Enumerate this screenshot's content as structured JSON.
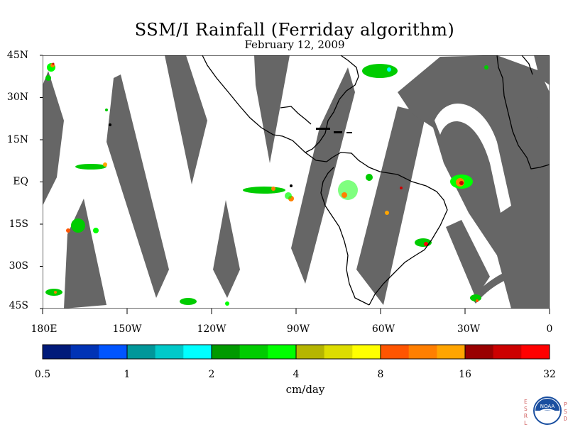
{
  "figure": {
    "title": "SSM/I Rainfall (Ferriday algorithm)",
    "date": "February 12, 2009"
  },
  "map": {
    "lat_labels": [
      "45N",
      "30N",
      "15N",
      "EQ",
      "15S",
      "30S",
      "45S"
    ],
    "lon_labels": [
      "180E",
      "150W",
      "120W",
      "90W",
      "60W",
      "30W",
      "0"
    ],
    "no_data_color": "#666666",
    "land_outline_color": "#000000",
    "background_color": "#ffffff"
  },
  "colorbar": {
    "unit_label": "cm/day",
    "tick_labels": [
      "0.5",
      "1",
      "2",
      "4",
      "8",
      "16",
      "32"
    ],
    "colors": [
      "#001a7a",
      "#0033b5",
      "#0055ff",
      "#00979a",
      "#00c9c9",
      "#00ffff",
      "#009a00",
      "#00cc00",
      "#00ff00",
      "#b5b500",
      "#dddd00",
      "#ffff00",
      "#ff5500",
      "#ff7f00",
      "#ffa500",
      "#990000",
      "#cc0000",
      "#ff0000"
    ]
  },
  "logo": {
    "left_letters": [
      "E",
      "S",
      "R",
      "L"
    ],
    "right_letters": [
      "P",
      "S",
      "D"
    ],
    "emblem_text": "NOAA"
  }
}
